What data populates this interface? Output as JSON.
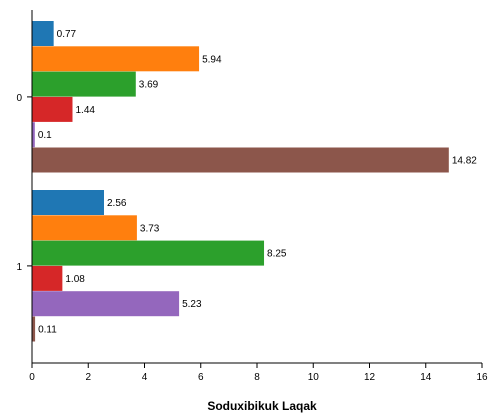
{
  "chart_data": {
    "type": "bar",
    "orientation": "horizontal",
    "categories": [
      "0",
      "1"
    ],
    "series": [
      {
        "values": [
          0.77,
          2.56
        ],
        "color": "#1f77b4"
      },
      {
        "values": [
          5.94,
          3.73
        ],
        "color": "#ff7f0e"
      },
      {
        "values": [
          3.69,
          8.25
        ],
        "color": "#2ca02c"
      },
      {
        "values": [
          1.44,
          1.08
        ],
        "color": "#d62728"
      },
      {
        "values": [
          0.1,
          5.23
        ],
        "color": "#9467bd"
      },
      {
        "values": [
          14.82,
          0.11
        ],
        "color": "#8c564b"
      }
    ],
    "title": "",
    "xlabel": "Soduxibikuk Laqak",
    "ylabel": "",
    "xlim": [
      0,
      16
    ],
    "xticks": [
      0,
      2,
      4,
      6,
      8,
      10,
      12,
      14,
      16
    ],
    "data_labels": true,
    "grid": false,
    "legend": "none"
  }
}
